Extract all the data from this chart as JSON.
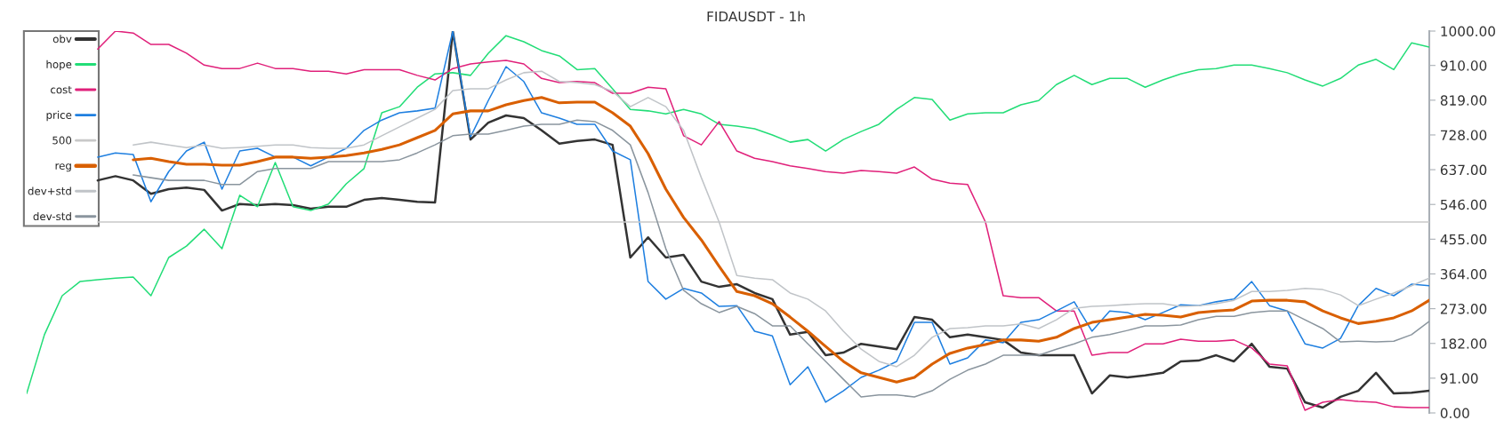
{
  "chart_data": {
    "type": "line",
    "title": "FIDAUSDT - 1h",
    "categories": [
      null,
      null,
      null,
      null,
      null,
      null,
      null,
      null,
      null,
      null,
      null,
      null,
      null,
      null,
      null,
      null,
      null,
      null,
      null,
      null,
      null,
      null,
      null,
      null,
      null,
      null,
      null,
      null,
      null,
      null,
      null,
      null,
      null,
      null,
      null,
      null,
      null,
      null,
      null,
      null,
      null,
      null,
      null,
      null,
      null,
      null,
      null,
      null,
      null,
      null,
      null,
      null,
      null,
      null,
      null,
      null,
      null,
      null,
      null,
      null,
      null,
      null,
      null,
      null,
      null,
      null,
      null,
      null,
      null,
      null,
      null,
      null,
      null,
      null,
      null,
      null,
      null,
      null,
      null,
      null
    ],
    "ylim": [
      0,
      1000
    ],
    "yticks": [
      {
        "value": 0,
        "label": "0.00"
      },
      {
        "value": 91,
        "label": "91.00"
      },
      {
        "value": 182,
        "label": "182.00"
      },
      {
        "value": 273,
        "label": "273.00"
      },
      {
        "value": 364,
        "label": "364.00"
      },
      {
        "value": 455,
        "label": "455.00"
      },
      {
        "value": 546,
        "label": "546.00"
      },
      {
        "value": 637,
        "label": "637.00"
      },
      {
        "value": 728,
        "label": "728.00"
      },
      {
        "value": 819,
        "label": "819.00"
      },
      {
        "value": 910,
        "label": "910.00"
      },
      {
        "value": 1000,
        "label": "1000.00"
      }
    ],
    "tick_labels": "y",
    "legend": "top left",
    "series": [
      {
        "name": "obv",
        "color": "#333333",
        "values": [
          null,
          null,
          null,
          null,
          609,
          620,
          609,
          574,
          586,
          590,
          584,
          530,
          547,
          544,
          547,
          544,
          535,
          540,
          540,
          558,
          563,
          558,
          553,
          551,
          1000,
          716,
          760,
          779,
          772,
          740,
          705,
          712,
          716,
          702,
          407,
          460,
          407,
          414,
          344,
          330,
          337,
          314,
          298,
          205,
          212,
          151,
          158,
          181,
          174,
          167,
          251,
          244,
          198,
          205,
          198,
          191,
          158,
          151,
          151,
          151,
          51,
          98,
          93,
          98,
          105,
          135,
          137,
          151,
          135,
          181,
          121,
          116,
          28,
          14,
          42,
          58,
          105,
          51,
          53,
          58
        ]
      },
      {
        "name": "hope",
        "color": "#22dd77",
        "values": [
          51,
          205,
          307,
          344,
          349,
          353,
          356,
          307,
          407,
          437,
          481,
          430,
          570,
          540,
          656,
          540,
          530,
          547,
          600,
          640,
          786,
          802,
          853,
          888,
          891,
          884,
          942,
          988,
          972,
          949,
          935,
          899,
          902,
          849,
          795,
          791,
          783,
          795,
          783,
          756,
          751,
          744,
          728,
          709,
          716,
          686,
          716,
          737,
          756,
          795,
          826,
          821,
          767,
          783,
          786,
          786,
          807,
          818,
          860,
          884,
          860,
          876,
          876,
          853,
          872,
          888,
          899,
          902,
          911,
          911,
          902,
          891,
          872,
          856,
          876,
          911,
          926,
          899,
          969,
          958
        ]
      },
      {
        "name": "cost",
        "color": "#e0207a",
        "values": [
          null,
          null,
          null,
          null,
          953,
          1000,
          995,
          965,
          965,
          942,
          911,
          902,
          902,
          916,
          902,
          902,
          895,
          895,
          888,
          899,
          899,
          899,
          884,
          872,
          902,
          914,
          919,
          923,
          914,
          876,
          865,
          868,
          865,
          837,
          837,
          853,
          849,
          726,
          702,
          763,
          686,
          667,
          658,
          647,
          640,
          632,
          628,
          635,
          632,
          628,
          644,
          612,
          602,
          598,
          500,
          307,
          302,
          302,
          267,
          267,
          151,
          158,
          158,
          181,
          181,
          193,
          188,
          188,
          191,
          170,
          128,
          123,
          7,
          28,
          35,
          30,
          28,
          16,
          14,
          14
        ]
      },
      {
        "name": "price",
        "color": "#1e7fe0",
        "values": [
          null,
          null,
          null,
          null,
          670,
          681,
          677,
          553,
          632,
          686,
          709,
          586,
          686,
          693,
          670,
          670,
          647,
          670,
          693,
          740,
          767,
          786,
          791,
          798,
          1000,
          723,
          818,
          907,
          868,
          786,
          772,
          756,
          756,
          686,
          663,
          344,
          298,
          326,
          314,
          279,
          281,
          214,
          202,
          74,
          121,
          28,
          58,
          93,
          112,
          135,
          237,
          237,
          128,
          144,
          191,
          184,
          237,
          244,
          267,
          291,
          214,
          267,
          263,
          244,
          263,
          283,
          281,
          291,
          298,
          344,
          281,
          267,
          181,
          170,
          195,
          281,
          326,
          307,
          337,
          333
        ]
      },
      {
        "name": "500",
        "color": "#c8c8c8",
        "values": [
          null,
          null,
          null,
          null,
          500,
          500,
          500,
          500,
          500,
          500,
          500,
          500,
          500,
          500,
          500,
          500,
          500,
          500,
          500,
          500,
          500,
          500,
          500,
          500,
          500,
          500,
          500,
          500,
          500,
          500,
          500,
          500,
          500,
          500,
          500,
          500,
          500,
          500,
          500,
          500,
          500,
          500,
          500,
          500,
          500,
          500,
          500,
          500,
          500,
          500,
          500,
          500,
          500,
          500,
          500,
          500,
          500,
          500,
          500,
          500,
          500,
          500,
          500,
          500,
          500,
          500,
          500,
          500,
          500,
          500,
          500,
          500,
          500,
          500,
          500,
          500,
          500,
          500,
          500,
          500
        ]
      },
      {
        "name": "reg",
        "color": "#d95f00",
        "values": [
          null,
          null,
          null,
          null,
          null,
          null,
          663,
          667,
          658,
          651,
          651,
          649,
          649,
          658,
          670,
          670,
          667,
          670,
          674,
          681,
          690,
          702,
          721,
          740,
          783,
          791,
          791,
          807,
          818,
          826,
          812,
          814,
          814,
          786,
          751,
          679,
          586,
          512,
          453,
          384,
          318,
          307,
          286,
          251,
          214,
          174,
          135,
          105,
          93,
          81,
          93,
          128,
          156,
          170,
          179,
          191,
          191,
          188,
          198,
          221,
          237,
          244,
          251,
          258,
          256,
          251,
          263,
          267,
          270,
          293,
          295,
          295,
          291,
          267,
          249,
          234,
          240,
          249,
          267,
          295
        ]
      },
      {
        "name": "dev+std",
        "color": "#c0c4c8",
        "values": [
          null,
          null,
          null,
          null,
          null,
          null,
          702,
          709,
          702,
          695,
          702,
          693,
          695,
          698,
          702,
          702,
          695,
          693,
          693,
          702,
          726,
          749,
          772,
          795,
          844,
          849,
          849,
          872,
          891,
          895,
          868,
          865,
          860,
          842,
          802,
          826,
          802,
          740,
          616,
          500,
          360,
          353,
          349,
          314,
          298,
          267,
          214,
          167,
          135,
          121,
          151,
          198,
          221,
          223,
          228,
          228,
          233,
          221,
          244,
          274,
          279,
          281,
          284,
          286,
          286,
          279,
          281,
          286,
          295,
          318,
          318,
          321,
          326,
          323,
          309,
          281,
          298,
          314,
          333,
          353
        ]
      },
      {
        "name": "dev-std",
        "color": "#8a959e",
        "values": [
          null,
          null,
          null,
          null,
          null,
          null,
          623,
          616,
          609,
          609,
          609,
          598,
          598,
          632,
          640,
          640,
          640,
          658,
          658,
          658,
          658,
          663,
          681,
          702,
          726,
          730,
          730,
          740,
          751,
          756,
          756,
          767,
          763,
          740,
          702,
          577,
          430,
          321,
          286,
          263,
          279,
          260,
          228,
          228,
          181,
          135,
          88,
          42,
          47,
          47,
          42,
          58,
          88,
          112,
          128,
          151,
          151,
          151,
          167,
          181,
          198,
          205,
          216,
          228,
          228,
          230,
          244,
          253,
          253,
          263,
          267,
          267,
          244,
          221,
          186,
          188,
          186,
          188,
          205,
          240
        ]
      }
    ]
  }
}
